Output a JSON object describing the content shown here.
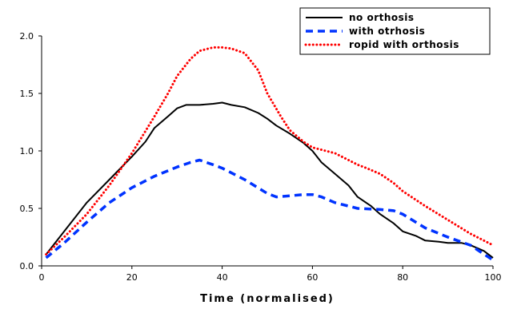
{
  "chart_data": {
    "type": "line",
    "title": "",
    "xlabel": "Time (normalised)",
    "ylabel": "",
    "xlim": [
      0,
      100
    ],
    "ylim": [
      0.0,
      2.0
    ],
    "x_ticks": [
      0,
      20,
      40,
      60,
      80,
      100
    ],
    "y_ticks": [
      0.0,
      0.5,
      1.0,
      1.5,
      2.0
    ],
    "x_tick_labels": [
      "0",
      "20",
      "40",
      "60",
      "80",
      "100"
    ],
    "y_tick_labels": [
      "0.0",
      "0.5",
      "1.0",
      "1.5",
      "2.0"
    ],
    "grid": false,
    "legend_position": "top-right",
    "series": [
      {
        "name": "no orthosis",
        "color": "#000000",
        "style": "solid",
        "x": [
          1,
          5,
          10,
          15,
          20,
          23,
          25,
          28,
          30,
          32,
          35,
          38,
          40,
          42,
          45,
          48,
          50,
          52,
          55,
          58,
          60,
          62,
          65,
          68,
          70,
          73,
          75,
          78,
          80,
          83,
          85,
          88,
          90,
          93,
          95,
          98,
          100
        ],
        "y": [
          0.1,
          0.3,
          0.55,
          0.75,
          0.95,
          1.08,
          1.2,
          1.3,
          1.37,
          1.4,
          1.4,
          1.41,
          1.42,
          1.4,
          1.38,
          1.33,
          1.28,
          1.22,
          1.15,
          1.07,
          1.0,
          0.9,
          0.8,
          0.7,
          0.6,
          0.52,
          0.45,
          0.37,
          0.3,
          0.26,
          0.22,
          0.21,
          0.2,
          0.2,
          0.18,
          0.13,
          0.07
        ]
      },
      {
        "name": "with otrhosis",
        "color": "#0033ff",
        "style": "dashed",
        "x": [
          1,
          5,
          10,
          15,
          20,
          25,
          30,
          33,
          35,
          38,
          40,
          45,
          50,
          52,
          55,
          58,
          60,
          62,
          65,
          70,
          75,
          78,
          80,
          85,
          90,
          95,
          100
        ],
        "y": [
          0.07,
          0.2,
          0.38,
          0.55,
          0.68,
          0.78,
          0.86,
          0.9,
          0.92,
          0.88,
          0.85,
          0.75,
          0.63,
          0.6,
          0.61,
          0.62,
          0.62,
          0.6,
          0.55,
          0.5,
          0.49,
          0.48,
          0.45,
          0.33,
          0.25,
          0.18,
          0.05
        ]
      },
      {
        "name": "ropid with orthosis",
        "color": "#ff0000",
        "style": "dotted",
        "x": [
          1,
          5,
          10,
          15,
          20,
          25,
          28,
          30,
          33,
          35,
          38,
          40,
          42,
          45,
          48,
          50,
          53,
          55,
          58,
          60,
          63,
          65,
          68,
          70,
          72,
          75,
          78,
          80,
          85,
          90,
          95,
          100
        ],
        "y": [
          0.1,
          0.25,
          0.45,
          0.7,
          0.98,
          1.3,
          1.5,
          1.65,
          1.8,
          1.87,
          1.9,
          1.9,
          1.89,
          1.85,
          1.7,
          1.5,
          1.3,
          1.18,
          1.08,
          1.03,
          1.0,
          0.98,
          0.92,
          0.88,
          0.85,
          0.8,
          0.72,
          0.65,
          0.52,
          0.4,
          0.28,
          0.18
        ]
      }
    ]
  }
}
